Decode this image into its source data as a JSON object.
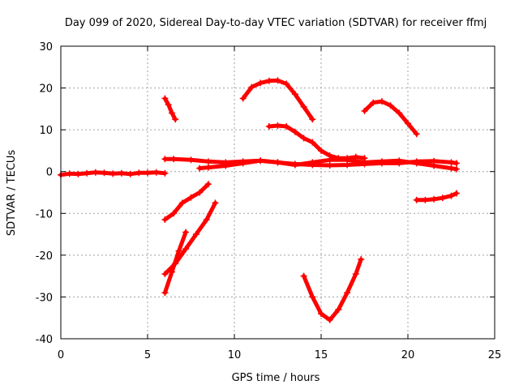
{
  "chart_data": {
    "type": "scatter",
    "title": "Day 099 of 2020, Sidereal Day-to-day VTEC variation (SDTVAR) for receiver ffmj",
    "xlabel": "GPS time / hours",
    "ylabel": "SDTVAR / TECUs",
    "xlim": [
      0,
      25
    ],
    "ylim": [
      -40,
      30
    ],
    "xticks": [
      0,
      5,
      10,
      15,
      20,
      25
    ],
    "yticks": [
      -40,
      -30,
      -20,
      -10,
      0,
      10,
      20,
      30
    ],
    "grid": true,
    "color": "#ff0000",
    "series": [
      {
        "x": [
          0.0,
          0.5,
          1.0,
          1.5,
          2.0,
          2.5,
          3.0,
          3.5,
          4.0,
          4.5,
          5.0,
          5.5,
          6.0
        ],
        "y": [
          -0.8,
          -0.5,
          -0.6,
          -0.4,
          -0.2,
          -0.3,
          -0.5,
          -0.4,
          -0.6,
          -0.3,
          -0.3,
          -0.2,
          -0.4
        ]
      },
      {
        "x": [
          6.0,
          6.5,
          7.5,
          8.5,
          9.5,
          10.5,
          11.5,
          12.5,
          13.5,
          14.5,
          15.5,
          16.5,
          17.5,
          18.5,
          19.5,
          20.5,
          21.5,
          22.5,
          22.8
        ],
        "y": [
          3.0,
          3.0,
          2.8,
          2.4,
          2.2,
          2.4,
          2.6,
          2.2,
          1.8,
          1.6,
          1.5,
          1.6,
          1.8,
          2.0,
          2.0,
          2.4,
          2.5,
          2.2,
          2.0
        ]
      },
      {
        "x": [
          8.0,
          8.5,
          9.5,
          10.5,
          11.5,
          12.5,
          13.5,
          14.5,
          15.5,
          16.5,
          17.5,
          18.5,
          19.5,
          20.5,
          21.5,
          22.5,
          22.8
        ],
        "y": [
          0.8,
          1.0,
          1.4,
          2.0,
          2.6,
          2.2,
          1.6,
          2.2,
          2.8,
          2.8,
          2.2,
          2.4,
          2.6,
          2.0,
          1.4,
          0.8,
          0.6
        ]
      },
      {
        "x": [
          6.0,
          6.2,
          6.4,
          6.6
        ],
        "y": [
          17.5,
          16.0,
          14.0,
          12.5
        ]
      },
      {
        "x": [
          10.5,
          11.0,
          11.5,
          12.0,
          12.5,
          13.0,
          13.5,
          14.0,
          14.5
        ],
        "y": [
          17.5,
          20.2,
          21.2,
          21.7,
          21.8,
          21.0,
          18.5,
          15.5,
          12.5
        ]
      },
      {
        "x": [
          12.0,
          12.5,
          13.0,
          13.5,
          14.0,
          14.5,
          15.0,
          15.5,
          16.0,
          16.5,
          17.0,
          17.5
        ],
        "y": [
          10.8,
          11.0,
          10.8,
          9.5,
          8.0,
          7.0,
          5.0,
          3.8,
          3.2,
          3.2,
          3.5,
          3.2
        ]
      },
      {
        "x": [
          17.5,
          18.0,
          18.5,
          19.0,
          19.5,
          20.0,
          20.5
        ],
        "y": [
          14.5,
          16.5,
          16.8,
          15.8,
          14.0,
          11.5,
          9.0
        ]
      },
      {
        "x": [
          6.0,
          6.5,
          7.0,
          7.5,
          8.0,
          8.5
        ],
        "y": [
          -11.5,
          -10.0,
          -7.5,
          -6.2,
          -5.0,
          -3.0
        ]
      },
      {
        "x": [
          6.0,
          6.6,
          7.2,
          7.8,
          8.4,
          8.9
        ],
        "y": [
          -24.5,
          -22.0,
          -18.5,
          -15.0,
          -11.5,
          -7.5
        ]
      },
      {
        "x": [
          6.0,
          6.4,
          6.8,
          7.2
        ],
        "y": [
          -29.0,
          -24.0,
          -19.0,
          -14.5
        ]
      },
      {
        "x": [
          14.0,
          14.5,
          15.0,
          15.5,
          16.0,
          16.5,
          17.0,
          17.3
        ],
        "y": [
          -25.0,
          -30.0,
          -34.0,
          -35.5,
          -33.0,
          -29.0,
          -24.5,
          -21.0
        ]
      },
      {
        "x": [
          20.5,
          21.0,
          21.5,
          22.0,
          22.5,
          22.8
        ],
        "y": [
          -6.8,
          -6.8,
          -6.6,
          -6.3,
          -5.8,
          -5.2
        ]
      }
    ]
  }
}
